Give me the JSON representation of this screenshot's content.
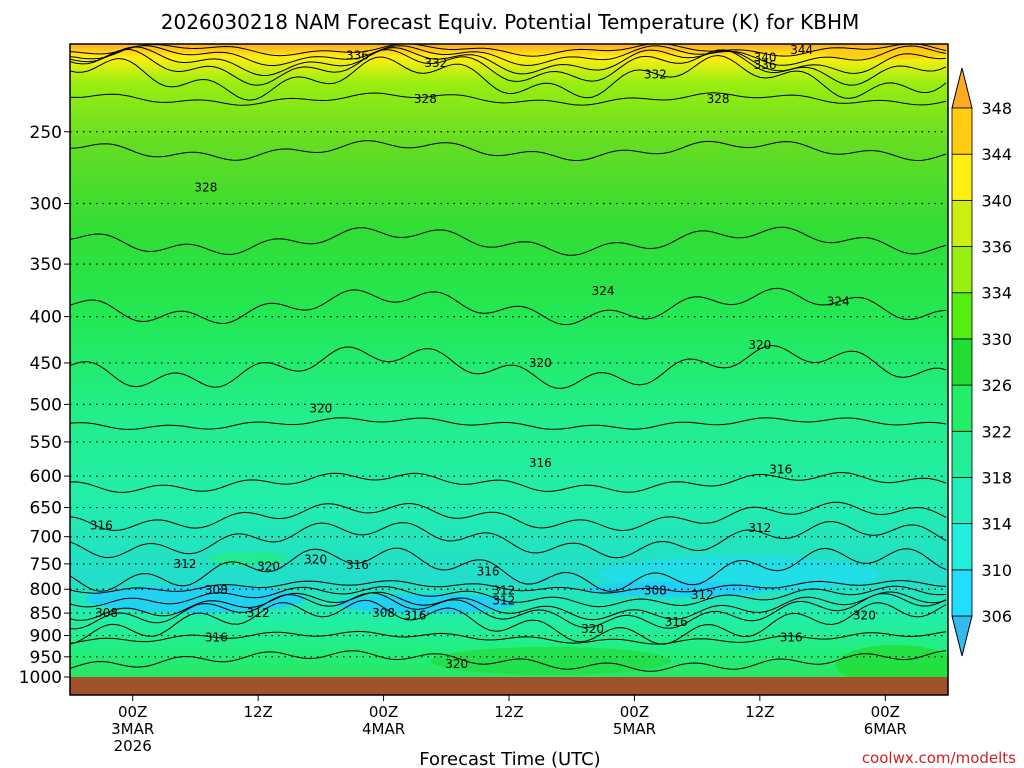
{
  "chart_data": {
    "type": "heatmap",
    "title": "2026030218 NAM Forecast Equiv. Potential Temperature (K) for KBHM",
    "xlabel": "Forecast Time (UTC)",
    "ylabel": "",
    "y_scale": "log-pressure",
    "y_reversed": true,
    "ylim": [
      200,
      1000
    ],
    "y_ticks": [
      250,
      300,
      350,
      400,
      450,
      500,
      550,
      600,
      650,
      700,
      750,
      800,
      850,
      900,
      950,
      1000
    ],
    "x_start_hour": -6,
    "x_end_hour": 78,
    "x_ticks": [
      {
        "hour": 0,
        "lines": [
          "00Z",
          "3MAR",
          "2026"
        ]
      },
      {
        "hour": 12,
        "lines": [
          "12Z"
        ]
      },
      {
        "hour": 24,
        "lines": [
          "00Z",
          "4MAR"
        ]
      },
      {
        "hour": 36,
        "lines": [
          "12Z"
        ]
      },
      {
        "hour": 48,
        "lines": [
          "00Z",
          "5MAR"
        ]
      },
      {
        "hour": 60,
        "lines": [
          "12Z"
        ]
      },
      {
        "hour": 72,
        "lines": [
          "00Z",
          "6MAR"
        ]
      }
    ],
    "grid": "dotted horizontal at pressure levels",
    "ground_level_hpa": 1000,
    "ground_color": "#a0522d",
    "colorbar": {
      "ticks": [
        306,
        310,
        314,
        318,
        322,
        326,
        330,
        334,
        336,
        340,
        344,
        348
      ],
      "bands": [
        {
          "from": 302,
          "to": 306,
          "color": "#33bbee"
        },
        {
          "from": 306,
          "to": 310,
          "color": "#22ddff"
        },
        {
          "from": 310,
          "to": 314,
          "color": "#22eedd"
        },
        {
          "from": 314,
          "to": 318,
          "color": "#22eebb"
        },
        {
          "from": 318,
          "to": 322,
          "color": "#22ee99"
        },
        {
          "from": 322,
          "to": 326,
          "color": "#22ee66"
        },
        {
          "from": 326,
          "to": 330,
          "color": "#22dd33"
        },
        {
          "from": 330,
          "to": 334,
          "color": "#55ee11"
        },
        {
          "from": 334,
          "to": 336,
          "color": "#99ee11"
        },
        {
          "from": 336,
          "to": 340,
          "color": "#ccee11"
        },
        {
          "from": 340,
          "to": 344,
          "color": "#ffee11"
        },
        {
          "from": 344,
          "to": 348,
          "color": "#ffcc11"
        },
        {
          "from": 348,
          "to": 352,
          "color": "#ffaa22"
        }
      ]
    },
    "contour_labels": [
      {
        "value": "336",
        "hour": 21.5,
        "p": 206
      },
      {
        "value": "332",
        "hour": 29,
        "p": 210
      },
      {
        "value": "340",
        "hour": 60.5,
        "p": 207
      },
      {
        "value": "344",
        "hour": 64,
        "p": 203
      },
      {
        "value": "336",
        "hour": 60.5,
        "p": 211
      },
      {
        "value": "332",
        "hour": 50,
        "p": 216
      },
      {
        "value": "328",
        "hour": 28,
        "p": 230
      },
      {
        "value": "328",
        "hour": 56,
        "p": 230
      },
      {
        "value": "328",
        "hour": 7,
        "p": 288
      },
      {
        "value": "324",
        "hour": 45,
        "p": 375
      },
      {
        "value": "324",
        "hour": 67.5,
        "p": 385
      },
      {
        "value": "320",
        "hour": 60,
        "p": 430
      },
      {
        "value": "320",
        "hour": 39,
        "p": 450
      },
      {
        "value": "320",
        "hour": 18,
        "p": 505
      },
      {
        "value": "316",
        "hour": 39,
        "p": 580
      },
      {
        "value": "316",
        "hour": 62,
        "p": 590
      },
      {
        "value": "316",
        "hour": -3,
        "p": 680
      },
      {
        "value": "312",
        "hour": 60,
        "p": 685
      },
      {
        "value": "320",
        "hour": 13,
        "p": 755
      },
      {
        "value": "320",
        "hour": 17.5,
        "p": 742
      },
      {
        "value": "316",
        "hour": 21.5,
        "p": 752
      },
      {
        "value": "312",
        "hour": 5,
        "p": 750
      },
      {
        "value": "316",
        "hour": 34,
        "p": 765
      },
      {
        "value": "312",
        "hour": 35.5,
        "p": 803
      },
      {
        "value": "312",
        "hour": 35.5,
        "p": 823
      },
      {
        "value": "308",
        "hour": 8,
        "p": 802
      },
      {
        "value": "308",
        "hour": 50,
        "p": 803
      },
      {
        "value": "312",
        "hour": 54.5,
        "p": 812
      },
      {
        "value": "308",
        "hour": -2.5,
        "p": 850
      },
      {
        "value": "312",
        "hour": 12,
        "p": 850
      },
      {
        "value": "308",
        "hour": 24,
        "p": 850
      },
      {
        "value": "316",
        "hour": 27,
        "p": 855
      },
      {
        "value": "316",
        "hour": 52,
        "p": 870
      },
      {
        "value": "320",
        "hour": 44,
        "p": 885
      },
      {
        "value": "320",
        "hour": 70,
        "p": 855
      },
      {
        "value": "316",
        "hour": 63,
        "p": 905
      },
      {
        "value": "316",
        "hour": 8,
        "p": 905
      },
      {
        "value": "320",
        "hour": 31,
        "p": 968
      }
    ],
    "credit": "coolwx.com/modelts"
  }
}
